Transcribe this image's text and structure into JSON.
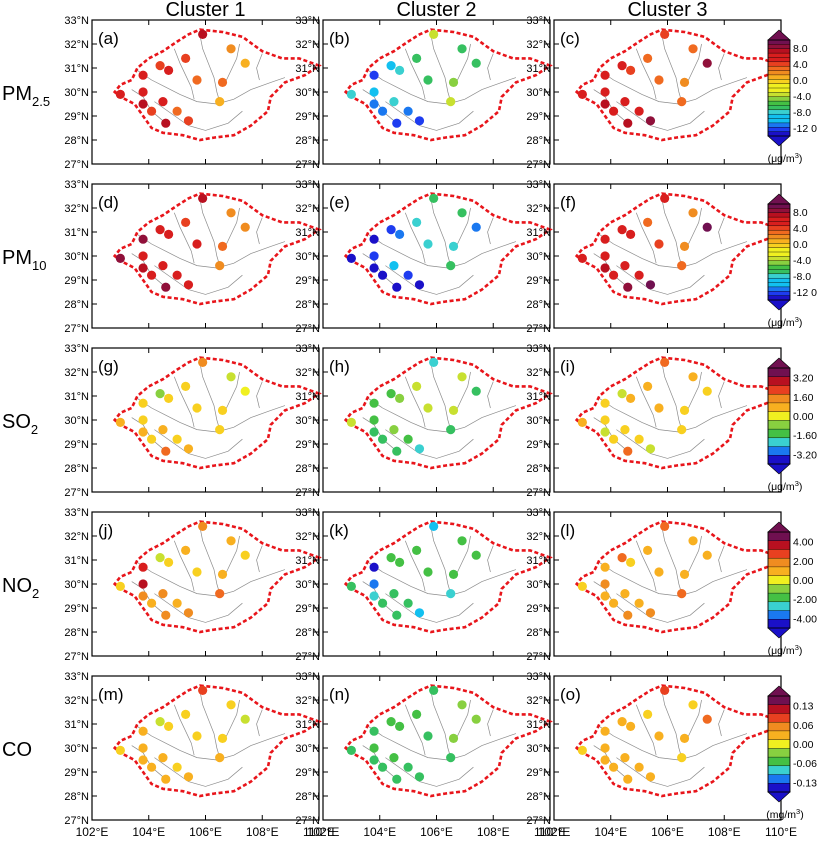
{
  "column_titles": [
    "Cluster 1",
    "Cluster 2",
    "Cluster 3"
  ],
  "pollutants": [
    {
      "label": "PM",
      "sub": "2.5",
      "unit_main": "(μg/m",
      "unit_sup": "3",
      "unit_end": ")",
      "colorbar": {
        "ticks": [
          "8.0",
          "4.0",
          "0.0",
          "-4.0",
          "-8.0",
          "-12 0"
        ],
        "n": 22
      }
    },
    {
      "label": "PM",
      "sub": "10",
      "unit_main": "(μg/m",
      "unit_sup": "3",
      "unit_end": ")",
      "colorbar": {
        "ticks": [
          "8.0",
          "4.0",
          "0.0",
          "-4.0",
          "-8.0",
          "-12 0"
        ],
        "n": 22
      }
    },
    {
      "label": "SO",
      "sub": "2",
      "unit_main": "(μg/m",
      "unit_sup": "3",
      "unit_end": ")",
      "colorbar": {
        "ticks": [
          "3.20",
          "1.60",
          "0.00",
          "-1.60",
          "-3.20"
        ],
        "n": 11
      }
    },
    {
      "label": "NO",
      "sub": "2",
      "unit_main": "(μg/m",
      "unit_sup": "3",
      "unit_end": ")",
      "colorbar": {
        "ticks": [
          "4.00",
          "2.00",
          "0.00",
          "-2.00",
          "-4.00"
        ],
        "n": 11
      }
    },
    {
      "label": "CO",
      "sub": "",
      "unit_main": "(mg/m",
      "unit_sup": "3",
      "unit_end": ")",
      "colorbar": {
        "ticks": [
          "0.13",
          "0.06",
          "0.00",
          "-0.06",
          "-0.13"
        ],
        "n": 11
      }
    }
  ],
  "panel_labels": [
    "(a)",
    "(b)",
    "(c)",
    "(d)",
    "(e)",
    "(f)",
    "(g)",
    "(h)",
    "(i)",
    "(j)",
    "(k)",
    "(l)",
    "(m)",
    "(n)",
    "(o)"
  ],
  "lat_ticks": [
    "33°N",
    "32°N",
    "31°N",
    "30°N",
    "29°N",
    "28°N",
    "27°N"
  ],
  "lon_ticks": [
    "102°E",
    "104°E",
    "106°E",
    "108°E",
    "110°E"
  ],
  "chart_data": {
    "type": "scatter",
    "xlabel": "",
    "ylabel": "",
    "xlim": [
      102,
      110
    ],
    "ylim": [
      27,
      33
    ],
    "stations": [
      [
        105.9,
        32.4
      ],
      [
        106.9,
        31.8
      ],
      [
        105.3,
        31.4
      ],
      [
        104.4,
        31.1
      ],
      [
        107.4,
        31.2
      ],
      [
        103.8,
        30.7
      ],
      [
        104.7,
        30.9
      ],
      [
        105.7,
        30.5
      ],
      [
        106.6,
        30.4
      ],
      [
        103.0,
        29.9
      ],
      [
        103.8,
        30.0
      ],
      [
        104.5,
        29.6
      ],
      [
        105.0,
        29.2
      ],
      [
        106.5,
        29.6
      ],
      [
        104.6,
        28.7
      ],
      [
        105.4,
        28.8
      ],
      [
        103.8,
        29.5
      ],
      [
        104.1,
        29.2
      ]
    ],
    "panels": [
      {
        "name": "(a)",
        "pollutant": "PM2.5",
        "cluster": "Cluster 1",
        "values": [
          7.0,
          2.0,
          4.5,
          5.0,
          1.5,
          6.5,
          5.5,
          4.0,
          3.5,
          6.5,
          6.0,
          6.0,
          4.0,
          1.5,
          7.0,
          4.5,
          7.0,
          5.0
        ]
      },
      {
        "name": "(b)",
        "pollutant": "PM2.5",
        "cluster": "Cluster 2",
        "values": [
          -2.5,
          -6.0,
          -5.5,
          -8.0,
          -6.0,
          -10.0,
          -7.0,
          -5.5,
          -3.0,
          -7.0,
          -8.5,
          -7.0,
          -9.0,
          -2.0,
          -10.5,
          -10.0,
          -9.0,
          -9.0
        ]
      },
      {
        "name": "(c)",
        "pollutant": "PM2.5",
        "cluster": "Cluster 3",
        "values": [
          5.0,
          4.0,
          4.0,
          5.5,
          8.0,
          6.0,
          5.0,
          4.0,
          3.0,
          6.0,
          5.5,
          6.0,
          5.5,
          3.5,
          7.5,
          8.0,
          7.0,
          6.0
        ]
      },
      {
        "name": "(d)",
        "pollutant": "PM10",
        "cluster": "Cluster 1",
        "values": [
          7.5,
          2.0,
          5.0,
          5.5,
          2.0,
          8.5,
          6.0,
          6.5,
          4.0,
          8.0,
          6.5,
          5.5,
          6.0,
          3.0,
          8.0,
          6.0,
          7.5,
          6.5
        ]
      },
      {
        "name": "(e)",
        "pollutant": "PM10",
        "cluster": "Cluster 2",
        "values": [
          -6.0,
          -6.0,
          -6.5,
          -10.0,
          -9.0,
          -11.0,
          -9.5,
          -7.0,
          -7.0,
          -11.5,
          -10.5,
          -7.5,
          -10.0,
          -6.0,
          -11.0,
          -11.0,
          -11.5,
          -11.0
        ]
      },
      {
        "name": "(f)",
        "pollutant": "PM10",
        "cluster": "Cluster 3",
        "values": [
          5.5,
          3.0,
          4.0,
          5.5,
          10.0,
          6.0,
          5.5,
          5.0,
          2.5,
          5.5,
          5.5,
          6.5,
          6.0,
          4.0,
          8.0,
          10.0,
          7.0,
          6.0
        ]
      },
      {
        "name": "(g)",
        "pollutant": "SO2",
        "cluster": "Cluster 1",
        "values": [
          1.2,
          -0.6,
          0.4,
          -0.7,
          0.2,
          0.4,
          0.6,
          0.6,
          0.4,
          1.0,
          0.6,
          0.8,
          0.4,
          0.6,
          1.8,
          0.8,
          0.8,
          0.6
        ]
      },
      {
        "name": "(h)",
        "pollutant": "SO2",
        "cluster": "Cluster 2",
        "values": [
          -2.0,
          -0.4,
          -0.6,
          -1.2,
          -1.8,
          -1.2,
          -0.8,
          -0.6,
          -0.6,
          -0.6,
          -1.4,
          -1.0,
          -1.4,
          -1.6,
          -1.6,
          -2.0,
          -1.6,
          -1.8
        ]
      },
      {
        "name": "(i)",
        "pollutant": "SO2",
        "cluster": "Cluster 3",
        "values": [
          1.8,
          0.8,
          0.8,
          -0.6,
          0.4,
          0.6,
          1.0,
          0.8,
          0.4,
          1.0,
          0.6,
          0.6,
          0.4,
          0.6,
          1.8,
          -0.6,
          -0.4,
          0.6
        ]
      },
      {
        "name": "(j)",
        "pollutant": "NO2",
        "cluster": "Cluster 1",
        "values": [
          1.4,
          0.8,
          0.8,
          -0.4,
          0.6,
          3.0,
          0.6,
          0.6,
          0.8,
          0.6,
          3.5,
          1.4,
          0.8,
          2.0,
          1.4,
          1.8,
          1.6,
          1.2
        ]
      },
      {
        "name": "(k)",
        "pollutant": "NO2",
        "cluster": "Cluster 2",
        "values": [
          -3.2,
          -1.6,
          -1.6,
          -1.6,
          -1.6,
          -4.5,
          -1.6,
          -1.6,
          -1.6,
          -2.0,
          -3.6,
          -2.0,
          -2.0,
          -2.6,
          -2.2,
          -3.4,
          -2.4,
          -2.0
        ]
      },
      {
        "name": "(l)",
        "pollutant": "NO2",
        "cluster": "Cluster 3",
        "values": [
          2.2,
          0.8,
          0.8,
          2.0,
          0.8,
          1.2,
          0.6,
          1.0,
          0.8,
          0.6,
          1.4,
          1.2,
          1.2,
          2.0,
          1.4,
          1.8,
          1.2,
          1.2
        ]
      },
      {
        "name": "(m)",
        "pollutant": "CO",
        "cluster": "Cluster 1",
        "values": [
          0.08,
          0.01,
          0.02,
          -0.02,
          -0.02,
          0.03,
          0.02,
          0.02,
          0.01,
          0.01,
          0.04,
          0.04,
          0.02,
          0.03,
          0.03,
          0.04,
          0.03,
          0.03
        ]
      },
      {
        "name": "(n)",
        "pollutant": "CO",
        "cluster": "Cluster 2",
        "values": [
          -0.07,
          -0.04,
          -0.05,
          -0.05,
          -0.03,
          -0.06,
          -0.05,
          -0.06,
          -0.04,
          -0.06,
          -0.05,
          -0.05,
          -0.06,
          -0.06,
          -0.07,
          -0.06,
          -0.06,
          -0.06
        ]
      },
      {
        "name": "(o)",
        "pollutant": "CO",
        "cluster": "Cluster 3",
        "values": [
          0.08,
          0.02,
          0.01,
          0.03,
          0.06,
          0.03,
          0.03,
          0.03,
          0.03,
          0.02,
          0.03,
          0.03,
          0.03,
          0.01,
          0.03,
          0.03,
          0.03,
          0.03
        ]
      }
    ],
    "legend": {
      "placement": "right"
    }
  },
  "colors": {
    "boundary": "#e8151b",
    "rivers": "#8c8c8c",
    "frame": "#000000",
    "palette": [
      "#1a10c8",
      "#1e3cf0",
      "#1a78f0",
      "#12c0f0",
      "#3ad0d0",
      "#36c060",
      "#44c044",
      "#88d040",
      "#c8e030",
      "#f0f020",
      "#f8d020",
      "#f8b020",
      "#f08c20",
      "#f06a20",
      "#e84020",
      "#d81e1e",
      "#b81020",
      "#90103a",
      "#701050"
    ]
  }
}
